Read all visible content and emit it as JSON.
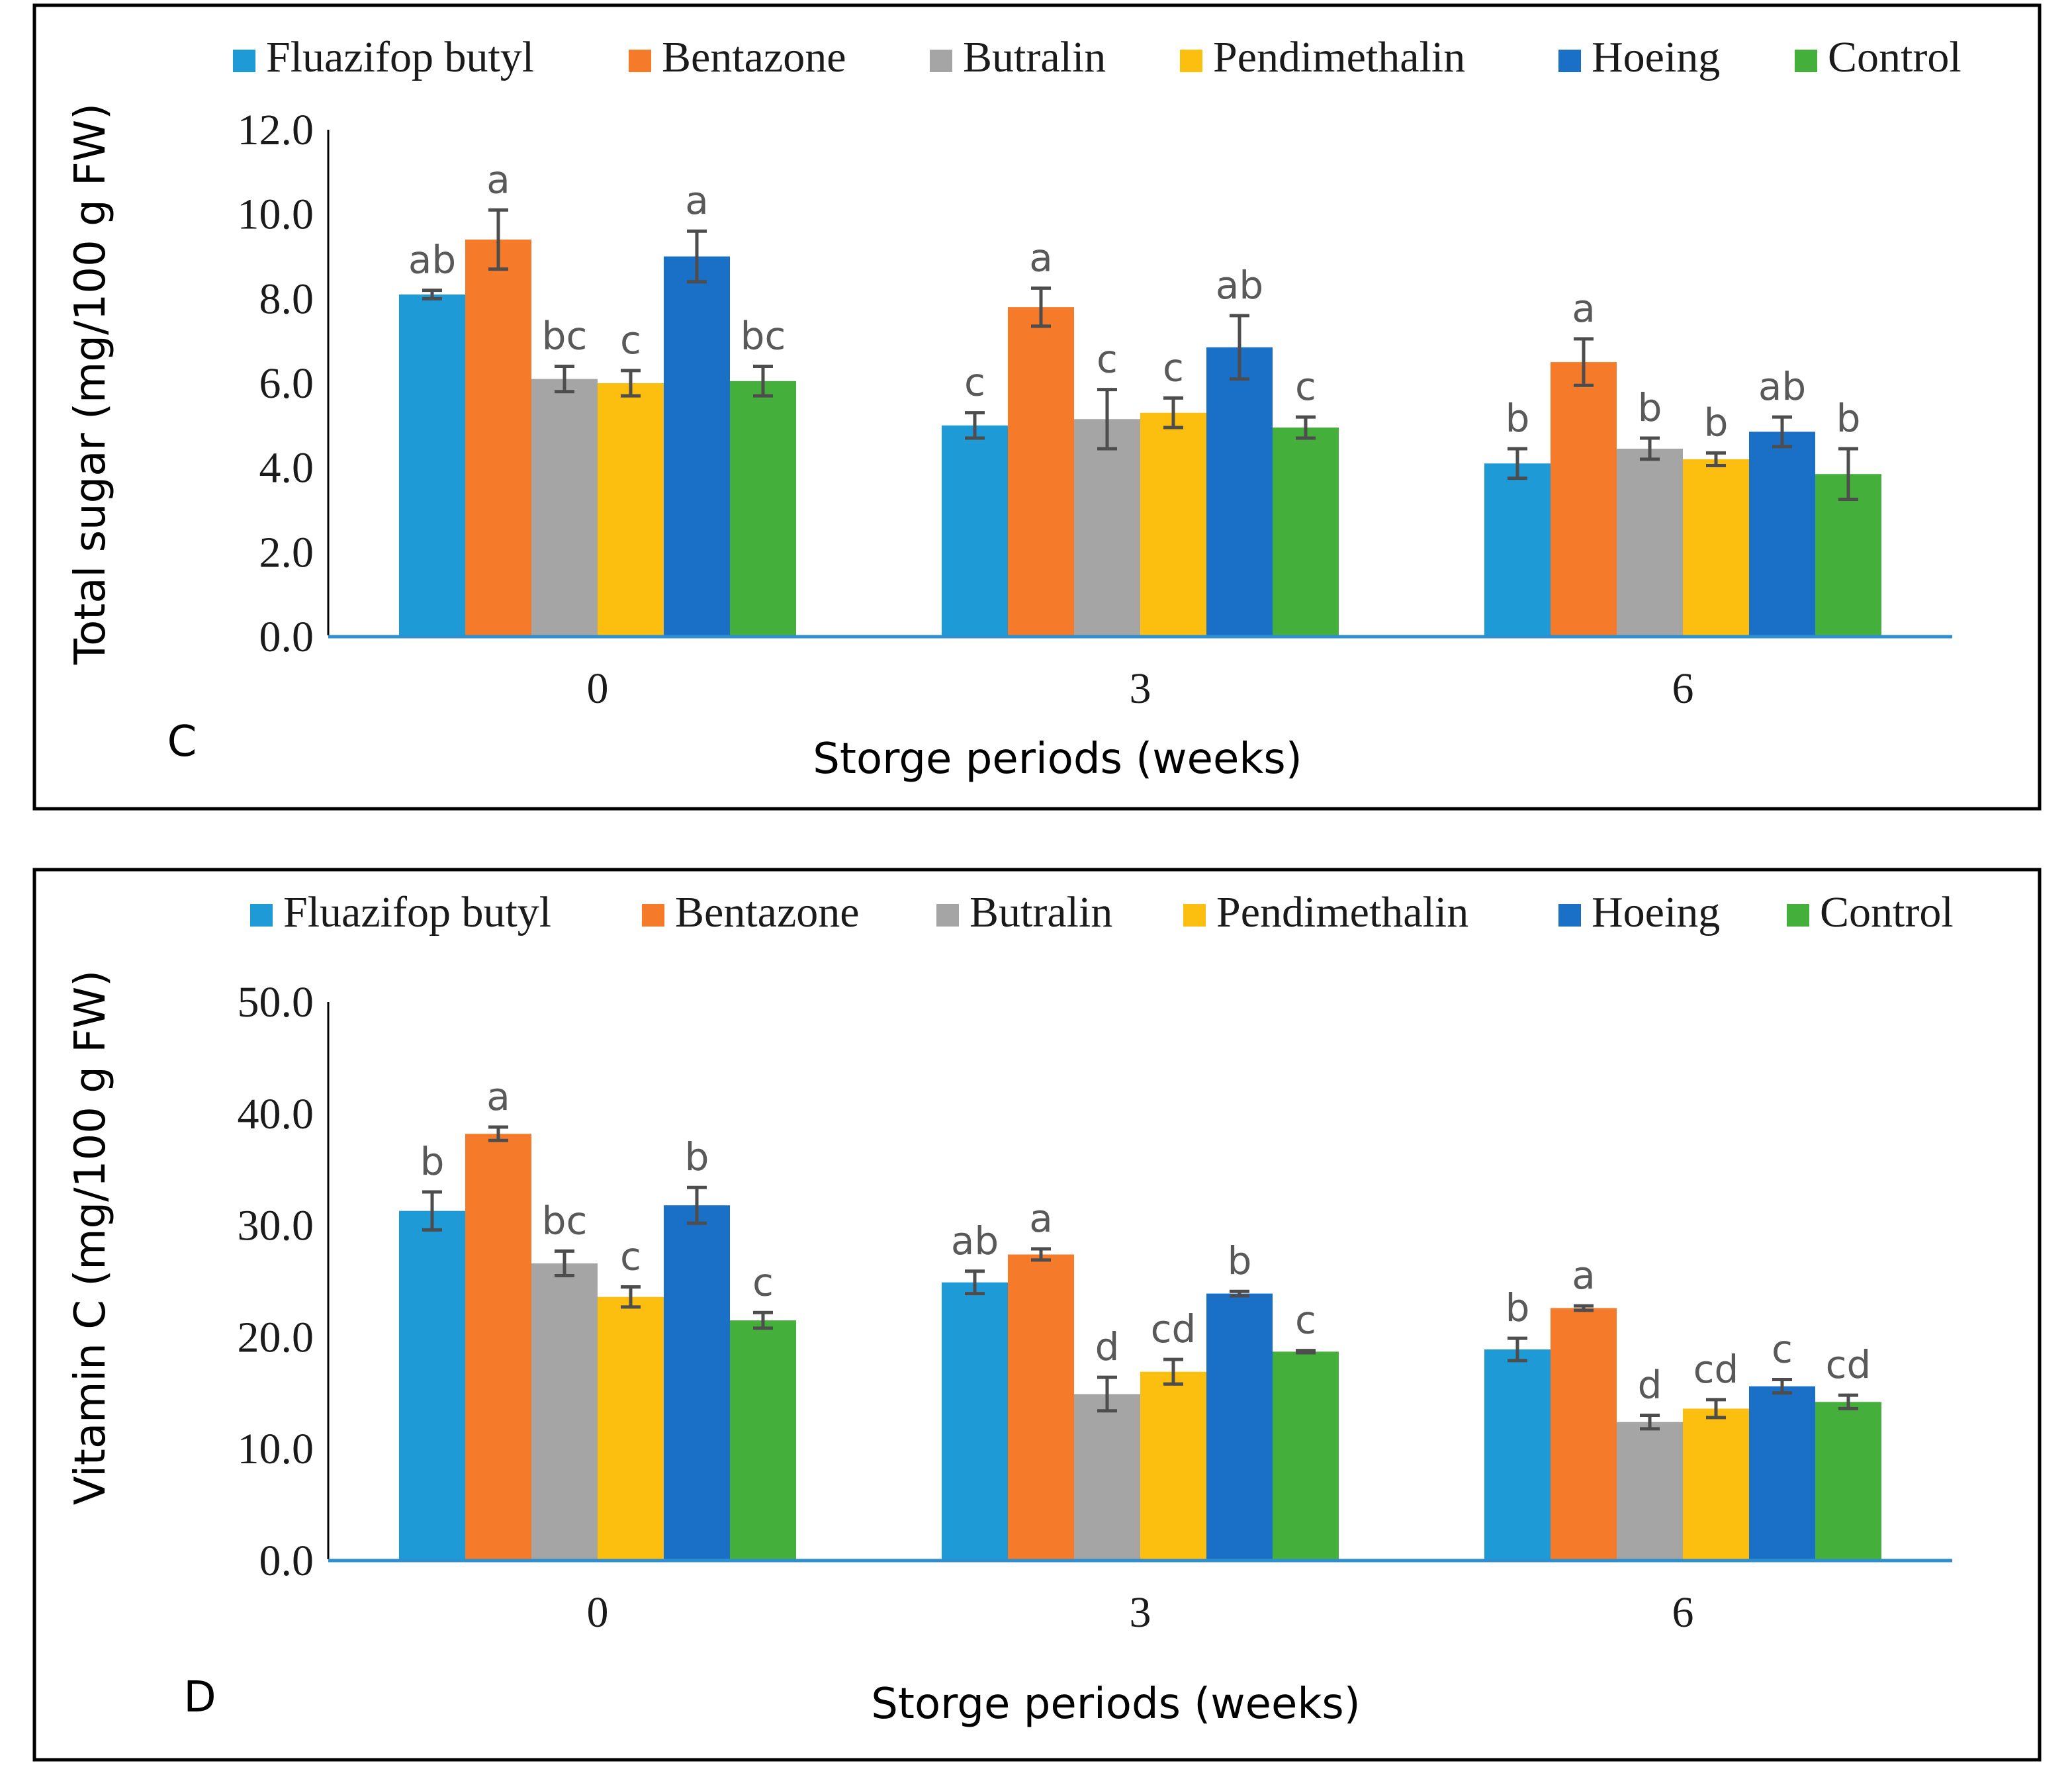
{
  "chart_data": [
    {
      "type": "bar",
      "panel_label": "C",
      "ylabel": "Total sugar (mg/100 g FW)",
      "xlabel": "Storge periods (weeks)",
      "categories": [
        "0",
        "3",
        "6"
      ],
      "ylim": [
        0,
        12
      ],
      "yticks": [
        "0.0",
        "2.0",
        "4.0",
        "6.0",
        "8.0",
        "10.0",
        "12.0"
      ],
      "ytick_values": [
        0,
        2,
        4,
        6,
        8,
        10,
        12
      ],
      "legend_position": "top",
      "series": [
        {
          "name": "Fluazifop butyl",
          "color": "#1E9BD7",
          "values": [
            8.1,
            5.0,
            4.1
          ],
          "errors": [
            0.1,
            0.3,
            0.35
          ],
          "letters": [
            "ab",
            "c",
            "b"
          ]
        },
        {
          "name": "Bentazone",
          "color": "#F57B2B",
          "values": [
            9.4,
            7.8,
            6.5
          ],
          "errors": [
            0.7,
            0.45,
            0.55
          ],
          "letters": [
            "a",
            "a",
            "a"
          ]
        },
        {
          "name": "Butralin",
          "color": "#A5A5A5",
          "values": [
            6.1,
            5.15,
            4.45
          ],
          "errors": [
            0.3,
            0.7,
            0.25
          ],
          "letters": [
            "bc",
            "c",
            "b"
          ]
        },
        {
          "name": "Pendimethalin",
          "color": "#FDBF0F",
          "values": [
            6.0,
            5.3,
            4.2
          ],
          "errors": [
            0.3,
            0.35,
            0.15
          ],
          "letters": [
            "c",
            "c",
            "b"
          ]
        },
        {
          "name": "Hoeing",
          "color": "#1A6FC7",
          "values": [
            9.0,
            6.85,
            4.85
          ],
          "errors": [
            0.6,
            0.75,
            0.35
          ],
          "letters": [
            "a",
            "ab",
            "ab"
          ]
        },
        {
          "name": "Control",
          "color": "#45AF3C",
          "values": [
            6.05,
            4.95,
            3.85
          ],
          "errors": [
            0.35,
            0.25,
            0.6
          ],
          "letters": [
            "bc",
            "c",
            "b"
          ]
        }
      ]
    },
    {
      "type": "bar",
      "panel_label": "D",
      "ylabel": "Vitamin C  (mg/100 g FW)",
      "xlabel": "Storge periods (weeks)",
      "categories": [
        "0",
        "3",
        "6"
      ],
      "ylim": [
        0,
        50
      ],
      "yticks": [
        "0.0",
        "10.0",
        "20.0",
        "30.0",
        "40.0",
        "50.0"
      ],
      "ytick_values": [
        0,
        10,
        20,
        30,
        40,
        50
      ],
      "legend_position": "top",
      "series": [
        {
          "name": "Fluazifop butyl",
          "color": "#1E9BD7",
          "values": [
            31.3,
            24.9,
            18.9
          ],
          "errors": [
            1.7,
            1.0,
            1.0
          ],
          "letters": [
            "b",
            "ab",
            "b"
          ]
        },
        {
          "name": "Bentazone",
          "color": "#F57B2B",
          "values": [
            38.2,
            27.4,
            22.6
          ],
          "errors": [
            0.6,
            0.5,
            0.2
          ],
          "letters": [
            "a",
            "a",
            "a"
          ]
        },
        {
          "name": "Butralin",
          "color": "#A5A5A5",
          "values": [
            26.6,
            14.9,
            12.4
          ],
          "errors": [
            1.1,
            1.5,
            0.6
          ],
          "letters": [
            "bc",
            "d",
            "d"
          ]
        },
        {
          "name": "Pendimethalin",
          "color": "#FDBF0F",
          "values": [
            23.6,
            16.9,
            13.6
          ],
          "errors": [
            0.9,
            1.1,
            0.8
          ],
          "letters": [
            "c",
            "cd",
            "cd"
          ]
        },
        {
          "name": "Hoeing",
          "color": "#1A6FC7",
          "values": [
            31.8,
            23.9,
            15.6
          ],
          "errors": [
            1.6,
            0.2,
            0.6
          ],
          "letters": [
            "b",
            "b",
            "c"
          ]
        },
        {
          "name": "Control",
          "color": "#45AF3C",
          "values": [
            21.5,
            18.7,
            14.2
          ],
          "errors": [
            0.7,
            0.1,
            0.6
          ],
          "letters": [
            "c",
            "c",
            "cd"
          ]
        }
      ]
    }
  ]
}
